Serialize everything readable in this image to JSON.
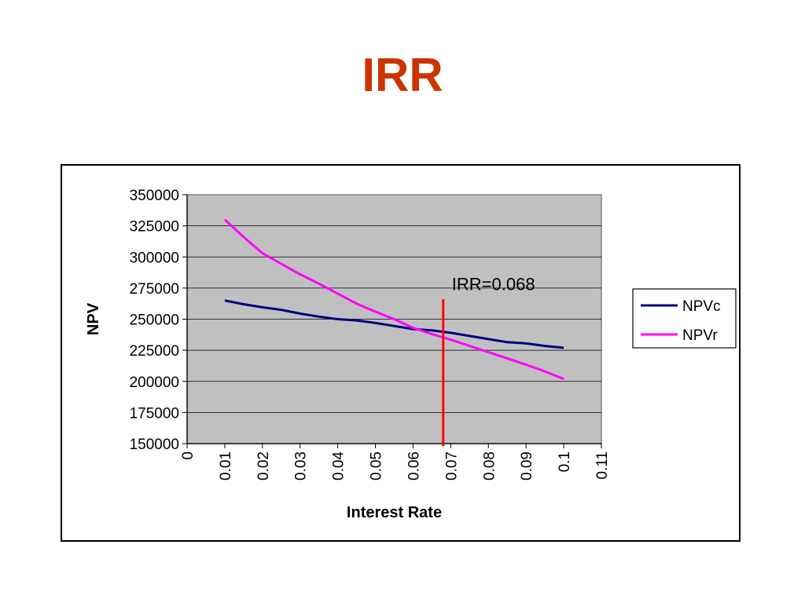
{
  "title": "IRR",
  "chart_data": {
    "type": "line",
    "xlabel": "Interest Rate",
    "ylabel": "NPV",
    "xlim": [
      0,
      0.11
    ],
    "ylim": [
      150000,
      350000
    ],
    "x_ticks": [
      "0",
      "0.01",
      "0.02",
      "0.03",
      "0.04",
      "0.05",
      "0.06",
      "0.07",
      "0.08",
      "0.09",
      "0.1",
      "0.11"
    ],
    "y_ticks": [
      "150000",
      "175000",
      "200000",
      "225000",
      "250000",
      "275000",
      "300000",
      "325000",
      "350000"
    ],
    "grid": true,
    "legend_position": "right",
    "plot_background": "#c0c0c0",
    "x": [
      0.01,
      0.015,
      0.02,
      0.025,
      0.03,
      0.035,
      0.04,
      0.045,
      0.05,
      0.055,
      0.06,
      0.065,
      0.07,
      0.075,
      0.08,
      0.085,
      0.09,
      0.095,
      0.1
    ],
    "series": [
      {
        "name": "NPVc",
        "color": "#000080",
        "values": [
          265000,
          262000,
          259500,
          257500,
          254500,
          252000,
          250000,
          249000,
          247000,
          244500,
          242000,
          241000,
          239000,
          236500,
          234000,
          231500,
          230500,
          228500,
          227000
        ]
      },
      {
        "name": "NPVr",
        "color": "#ff00ff",
        "values": [
          330000,
          316000,
          303000,
          294500,
          286000,
          278500,
          270500,
          262500,
          256000,
          250000,
          243000,
          238000,
          233500,
          228500,
          223500,
          218500,
          213500,
          208000,
          202000
        ]
      }
    ],
    "annotations": [
      {
        "text": "IRR=0.068",
        "x": 0.068,
        "color": "#ff0000"
      }
    ]
  }
}
